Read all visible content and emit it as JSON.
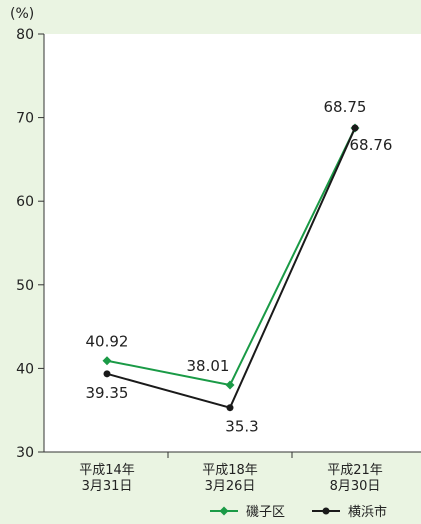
{
  "chart_data": {
    "type": "line",
    "y_unit_label": "(%)",
    "categories": [
      [
        "平成14年",
        "3月31日"
      ],
      [
        "平成18年",
        "3月26日"
      ],
      [
        "平成21年",
        "8月30日"
      ]
    ],
    "ylim": [
      30,
      80
    ],
    "yticks": [
      30,
      40,
      50,
      60,
      70,
      80
    ],
    "grid": false,
    "legend_position": "bottom-right",
    "series": [
      {
        "name": "磯子区",
        "color": "#1a9a46",
        "marker": "diamond",
        "values": [
          40.92,
          38.01,
          68.75
        ],
        "labels": [
          "40.92",
          "38.01",
          "68.75"
        ]
      },
      {
        "name": "横浜市",
        "color": "#1a1a1a",
        "marker": "circle",
        "values": [
          39.35,
          35.3,
          68.76
        ],
        "labels": [
          "39.35",
          "35.3",
          "68.76"
        ]
      }
    ]
  }
}
